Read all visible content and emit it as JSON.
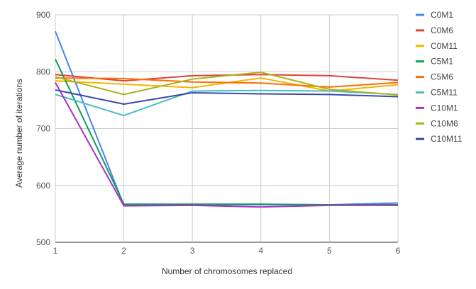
{
  "chart_data": {
    "type": "line",
    "xlabel": "Number of chromosomes replaced",
    "ylabel": "Average number of iterations",
    "x": [
      1,
      2,
      3,
      4,
      5,
      6
    ],
    "x_ticks": [
      "1",
      "2",
      "3",
      "4",
      "5",
      "6"
    ],
    "y_ticks": [
      "500",
      "600",
      "700",
      "800",
      "900"
    ],
    "ylim": [
      500,
      900
    ],
    "xlim": [
      1,
      6
    ],
    "grid": true,
    "legend_position": "right",
    "series": [
      {
        "name": "C0M1",
        "color": "#4285F4",
        "values": [
          871,
          565,
          566,
          566,
          566,
          569
        ]
      },
      {
        "name": "C0M6",
        "color": "#DB4437",
        "values": [
          795,
          784,
          793,
          795,
          793,
          785
        ]
      },
      {
        "name": "C0M11",
        "color": "#F4B400",
        "values": [
          784,
          778,
          772,
          789,
          766,
          777
        ]
      },
      {
        "name": "C5M1",
        "color": "#0F9D58",
        "values": [
          822,
          567,
          567,
          567,
          566,
          566
        ]
      },
      {
        "name": "C5M6",
        "color": "#FF6D00",
        "values": [
          789,
          788,
          782,
          780,
          773,
          781
        ]
      },
      {
        "name": "C5M11",
        "color": "#46BDC6",
        "values": [
          760,
          723,
          766,
          767,
          766,
          760
        ]
      },
      {
        "name": "C10M1",
        "color": "#AB30C4",
        "values": [
          781,
          564,
          565,
          562,
          565,
          565
        ]
      },
      {
        "name": "C10M6",
        "color": "#ABB41B",
        "values": [
          791,
          760,
          787,
          799,
          769,
          759
        ]
      },
      {
        "name": "C10M11",
        "color": "#3949AB",
        "values": [
          768,
          743,
          763,
          761,
          760,
          756
        ]
      }
    ]
  }
}
